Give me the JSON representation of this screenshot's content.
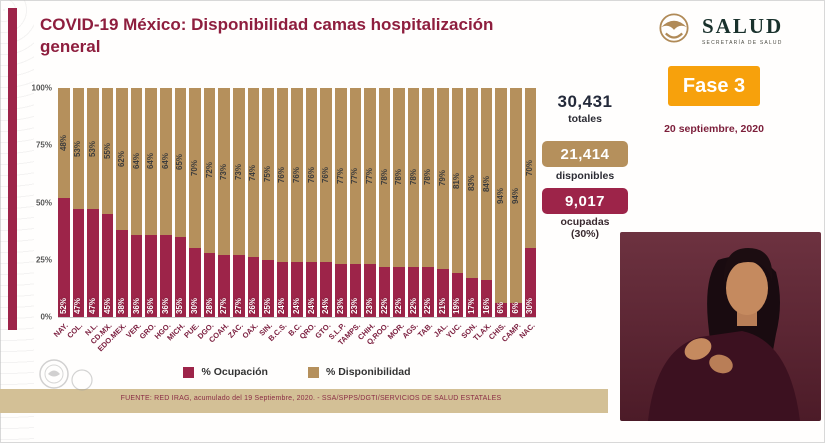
{
  "header": {
    "title": "COVID-19 México: Disponibilidad camas hospitalización general",
    "logo": {
      "name": "SALUD",
      "subtitle": "SECRETARÍA DE SALUD"
    },
    "fase_badge": "Fase 3",
    "date": "20 septiembre, 2020"
  },
  "stats": {
    "totales": {
      "value": "30,431",
      "label": "totales"
    },
    "disponibles": {
      "value": "21,414",
      "label": "disponibles"
    },
    "ocupadas": {
      "value": "9,017",
      "label_line1": "ocupadas",
      "label_line2": "(30%)"
    }
  },
  "chart_data": {
    "type": "bar",
    "stacked": true,
    "title": "COVID-19 México: Disponibilidad camas hospitalización general",
    "categories": [
      "NAY.",
      "COL.",
      "N.L.",
      "CD.MX.",
      "EDO.MEX.",
      "VER.",
      "GRO.",
      "HGO.",
      "MICH.",
      "PUE.",
      "DGO.",
      "COAH.",
      "ZAC.",
      "OAX.",
      "SIN.",
      "B.C.S.",
      "B.C.",
      "QRO.",
      "GTO.",
      "S.L.P.",
      "TAMPS.",
      "CHIH.",
      "Q.ROO.",
      "MOR.",
      "AGS.",
      "TAB.",
      "JAL.",
      "YUC.",
      "SON.",
      "TLAX.",
      "CHIS.",
      "CAMP.",
      "NAC."
    ],
    "series": [
      {
        "name": "% Ocupación",
        "color": "#9d2449",
        "values": [
          52,
          47,
          47,
          45,
          38,
          36,
          36,
          36,
          35,
          30,
          28,
          27,
          27,
          26,
          25,
          24,
          24,
          24,
          24,
          23,
          23,
          23,
          22,
          22,
          22,
          22,
          21,
          19,
          17,
          16,
          6,
          6,
          30
        ]
      },
      {
        "name": "% Disponibilidad",
        "color": "#b5905c",
        "values": [
          48,
          53,
          53,
          55,
          62,
          64,
          64,
          64,
          65,
          70,
          72,
          73,
          73,
          74,
          75,
          76,
          76,
          76,
          76,
          77,
          77,
          77,
          78,
          78,
          78,
          78,
          79,
          81,
          83,
          84,
          94,
          94,
          70
        ]
      }
    ],
    "y_ticks": [
      "100%",
      "75%",
      "50%",
      "25%",
      "0%"
    ],
    "ylim": [
      0,
      100
    ],
    "value_suffix": "%",
    "legend_position": "bottom"
  },
  "footer": {
    "source": "FUENTE: RED IRAG, acumulado del 19 Septiembre, 2020.  -  SSA/SPPS/DGTI/SERVICIOS DE SALUD ESTATALES"
  },
  "colors": {
    "ocupacion": "#9d2449",
    "disponibilidad": "#b5905c",
    "fase_badge": "#f7a10c",
    "title_text": "#8e1e3e",
    "bottom_stripe": "#d3c096"
  }
}
